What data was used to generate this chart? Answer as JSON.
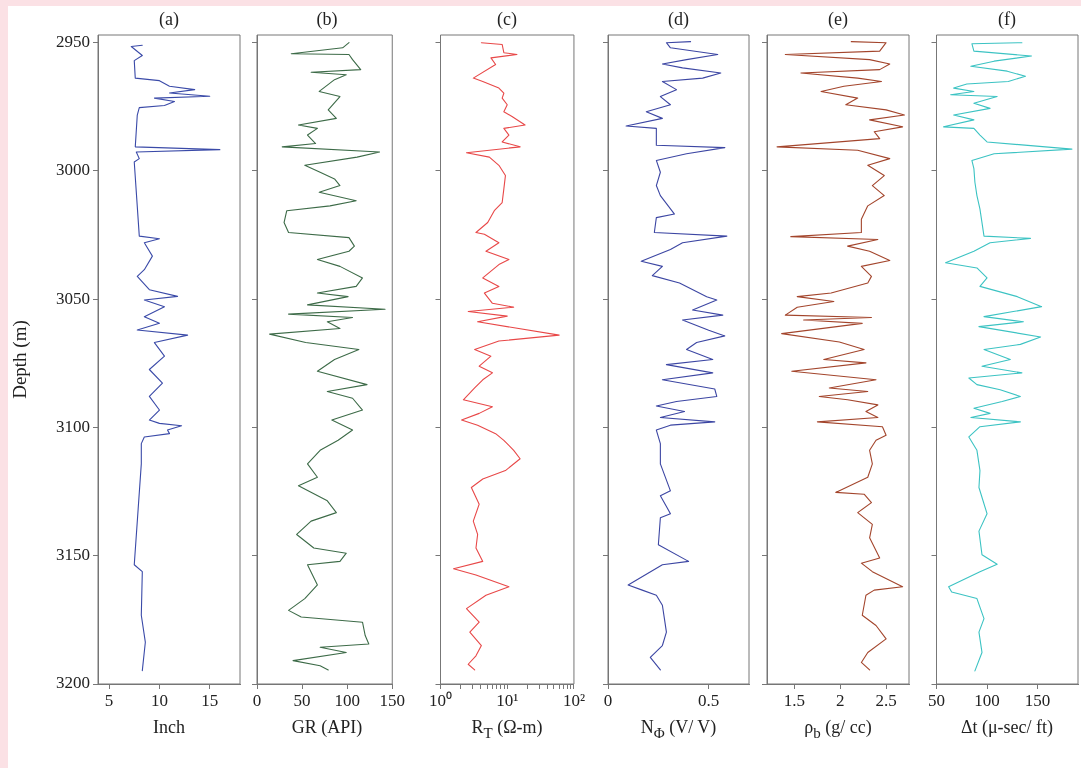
{
  "chart_data": [
    {
      "type": "line",
      "title": "(a)",
      "xlabel": "Inch",
      "ylabel": "Depth (m)",
      "xlim": [
        3.9,
        18
      ],
      "xticks": [
        5,
        10,
        15
      ],
      "ylim": [
        3200,
        2947
      ],
      "yticks": [
        2950,
        3000,
        3050,
        3100,
        3150,
        3200
      ],
      "grid": false,
      "series": [
        {
          "color": "#3a4aa8",
          "x": [
            8.3,
            7.2,
            8.3,
            7.5,
            7.6,
            10.0,
            11,
            13.5,
            11,
            15,
            9.5,
            11.5,
            10.5,
            8.0,
            7.8,
            7.6,
            16,
            7.7,
            8.0,
            7.5,
            8.0,
            10,
            8.5,
            9.3,
            8.5,
            7.8,
            9.0,
            11.8,
            8.5,
            10.5,
            8.5,
            10,
            7.8,
            12.8,
            9.5,
            10.5,
            9.0,
            10.3,
            9.0,
            10.0,
            9.0,
            10,
            12.2,
            10.8,
            11.0,
            8.5,
            8.2,
            8.2,
            7.5,
            8.3,
            8.2,
            8.6,
            8.3
          ],
          "values": [
            2951,
            2951.5,
            2955,
            2957,
            2963.8,
            2964.8,
            2967,
            2968.3,
            2969.6,
            2970.9,
            2971.6,
            2972.9,
            2974.5,
            2975.3,
            2978.2,
            2990.6,
            2991.7,
            2992.6,
            2995.2,
            2996.5,
            3025.4,
            3026.4,
            3028,
            3033.2,
            3038.5,
            3041.1,
            3046.3,
            3048.9,
            3050.3,
            3052.9,
            3056.8,
            3059.4,
            3062,
            3064,
            3066.9,
            3072.2,
            3077.4,
            3082.7,
            3087.9,
            3093.2,
            3097.1,
            3098.4,
            3099.3,
            3101,
            3102.4,
            3103.7,
            3106.3,
            3114.2,
            3153.5,
            3156.2,
            3173.2,
            3183.7,
            3194.8
          ]
        }
      ]
    },
    {
      "type": "line",
      "title": "(b)",
      "xlabel": "GR (API)",
      "xlim": [
        0,
        150
      ],
      "xticks": [
        0,
        50,
        100,
        150
      ],
      "ylim": [
        3200,
        2947
      ],
      "yticks": [
        2950,
        3000,
        3050,
        3100,
        3150,
        3200
      ],
      "grid": false,
      "tick_labels": "x",
      "series": [
        {
          "color": "#3d6b48",
          "x": [
            102,
            95,
            38,
            102,
            106,
            115,
            60,
            99,
            86,
            69,
            92,
            79,
            88,
            46,
            67,
            56,
            65,
            28,
            136,
            111,
            53,
            70,
            86,
            92,
            69,
            110,
            81,
            33,
            30,
            35,
            102,
            108,
            102,
            67,
            92,
            117,
            110,
            67,
            101,
            56,
            142,
            35,
            106,
            78,
            92,
            14,
            54,
            113,
            86,
            67,
            122,
            78,
            106,
            117,
            83,
            106,
            90,
            70,
            56,
            67,
            46,
            78,
            88,
            60,
            44,
            63,
            99,
            92,
            56,
            67,
            53,
            35,
            49,
            117,
            120,
            124,
            70,
            99,
            40,
            70,
            79
          ],
          "values": [
            2950,
            2952,
            2954.3,
            2954.6,
            2956.6,
            2960.5,
            2961.5,
            2962.5,
            2964.4,
            2969,
            2971,
            2976.2,
            2979.5,
            2982.1,
            2983.4,
            2986,
            2989.3,
            2990.6,
            2992.6,
            2994.6,
            2997.8,
            3000.5,
            3003.1,
            3005.7,
            3008.3,
            3011.6,
            3013.6,
            3015.5,
            3020.1,
            3024,
            3026,
            3029.3,
            3031.3,
            3034.5,
            3037.2,
            3041.7,
            3045,
            3047.6,
            3049,
            3052.2,
            3053.9,
            3055.8,
            3057.1,
            3058.8,
            3061.4,
            3063.6,
            3066.9,
            3069.6,
            3073.5,
            3078.1,
            3083.3,
            3086,
            3088.6,
            3093.2,
            3097.1,
            3101,
            3105,
            3108.9,
            3114.2,
            3119.4,
            3122.7,
            3128.6,
            3133.2,
            3136.5,
            3141.7,
            3147,
            3149,
            3152.2,
            3153.5,
            3161.4,
            3166.7,
            3171.3,
            3173.9,
            3175.9,
            3181.1,
            3184.4,
            3185.7,
            3187.7,
            3190.9,
            3192.9,
            3194.5
          ]
        }
      ]
    },
    {
      "type": "line",
      "title": "(c)",
      "xlabel": "R$_{T}$ (Ω-m)",
      "log": "x",
      "xlim": [
        1,
        100
      ],
      "xticks": [
        {
          "value": 1,
          "label": "10⁰"
        },
        {
          "value": 2,
          "label": null
        },
        {
          "value": 3,
          "label": null
        },
        {
          "value": 4,
          "label": null
        },
        {
          "value": 5,
          "label": null
        },
        {
          "value": 6,
          "label": null
        },
        {
          "value": 7,
          "label": null
        },
        {
          "value": 8,
          "label": null
        },
        {
          "value": 9,
          "label": null
        },
        {
          "value": 10,
          "label": "10¹"
        },
        {
          "value": 20,
          "label": null
        },
        {
          "value": 30,
          "label": null
        },
        {
          "value": 40,
          "label": null
        },
        {
          "value": 50,
          "label": null
        },
        {
          "value": 60,
          "label": null
        },
        {
          "value": 70,
          "label": null
        },
        {
          "value": 80,
          "label": null
        },
        {
          "value": 90,
          "label": null
        },
        {
          "value": 100,
          "label": "10²"
        }
      ],
      "ylim": [
        3200,
        2947
      ],
      "yticks": [
        2950,
        3000,
        3050,
        3100,
        3150,
        3200
      ],
      "grid": false,
      "tick_labels": "x",
      "series": [
        {
          "color": "#e84848",
          "x": [
            4.1,
            8.4,
            8.9,
            14,
            5.7,
            6.7,
            3.1,
            4.3,
            7.5,
            8.9,
            8.4,
            10,
            8.9,
            11.8,
            18.5,
            8.9,
            10.6,
            8.4,
            15.6,
            2.45,
            5.4,
            7.5,
            9.4,
            8.9,
            8.4,
            6.4,
            5.1,
            3.4,
            4.55,
            7.5,
            4.8,
            10.6,
            7.5,
            4.3,
            7.5,
            4.55,
            6.0,
            12.5,
            2.6,
            10,
            3.6,
            60,
            7.5,
            3.25,
            5.7,
            3.8,
            6.0,
            4.3,
            3.25,
            2.2,
            6.0,
            3.8,
            2.07,
            3.6,
            6.7,
            8.9,
            12.5,
            15.6,
            9.4,
            4.3,
            2.9,
            3.8,
            3.1,
            3.6,
            3.4,
            4.3,
            1.57,
            3.4,
            10.6,
            4.8,
            2.45,
            3.8,
            2.75,
            4.1,
            3.4,
            2.6,
            3.25
          ],
          "values": [
            2950,
            2950.7,
            2953.9,
            2954.6,
            2955.9,
            2958.5,
            2963.8,
            2965.1,
            2967.7,
            2969.7,
            2971.6,
            2974.2,
            2976.9,
            2978.8,
            2982.1,
            2983.4,
            2986,
            2988.7,
            2990.6,
            2992.9,
            2994.6,
            2997.8,
            3001.8,
            3007,
            3012.3,
            3015.5,
            3020.1,
            3024,
            3024.7,
            3028,
            3031.3,
            3034.5,
            3036.5,
            3041.7,
            3045,
            3047.6,
            3051.6,
            3053.1,
            3054.8,
            3056.6,
            3058.8,
            3064,
            3066.3,
            3069.6,
            3072.2,
            3076.1,
            3078.7,
            3081.4,
            3084.6,
            3089.2,
            3091.9,
            3094.5,
            3097.1,
            3099.1,
            3102.4,
            3105,
            3108.9,
            3112.2,
            3116.8,
            3120.1,
            3123.4,
            3129.9,
            3136.5,
            3141.7,
            3147,
            3152.2,
            3155.1,
            3157.5,
            3162.1,
            3165.4,
            3170.6,
            3175.9,
            3179.8,
            3185,
            3189,
            3192.3,
            3194.5
          ]
        }
      ]
    },
    {
      "type": "line",
      "title": "(d)",
      "xlabel": "N$_{Φ}$ (V/ V)",
      "xlim": [
        0,
        0.7
      ],
      "xticks": [
        0,
        0.5
      ],
      "ylim": [
        3200,
        2947
      ],
      "yticks": [
        2950,
        3000,
        3050,
        3100,
        3150,
        3200
      ],
      "grid": false,
      "tick_labels": "x",
      "series": [
        {
          "color": "#3c46a3",
          "x": [
            0.41,
            0.29,
            0.31,
            0.545,
            0.39,
            0.27,
            0.37,
            0.56,
            0.47,
            0.27,
            0.34,
            0.26,
            0.31,
            0.19,
            0.27,
            0.09,
            0.24,
            0.24,
            0.58,
            0.39,
            0.24,
            0.26,
            0.24,
            0.26,
            0.33,
            0.24,
            0.23,
            0.59,
            0.37,
            0.31,
            0.165,
            0.27,
            0.22,
            0.355,
            0.49,
            0.54,
            0.42,
            0.57,
            0.37,
            0.5,
            0.58,
            0.44,
            0.39,
            0.52,
            0.29,
            0.52,
            0.27,
            0.53,
            0.54,
            0.34,
            0.24,
            0.38,
            0.26,
            0.53,
            0.31,
            0.24,
            0.26,
            0.26,
            0.31,
            0.26,
            0.31,
            0.26,
            0.25,
            0.4,
            0.27,
            0.1,
            0.17,
            0.24,
            0.27,
            0.28,
            0.29,
            0.27,
            0.21,
            0.26
          ],
          "values": [
            2949.6,
            2950,
            2952,
            2954.6,
            2956.6,
            2958.3,
            2959.8,
            2961.8,
            2963.8,
            2965.1,
            2968.3,
            2971,
            2974.2,
            2976.9,
            2979.5,
            2982.5,
            2983.4,
            2990,
            2990.9,
            2993.3,
            2995.9,
            3000.5,
            3005.7,
            3009.6,
            3016.8,
            3018.2,
            3024,
            3025.4,
            3028,
            3030.6,
            3035.2,
            3037.2,
            3040.8,
            3043.7,
            3049,
            3050.3,
            3054.2,
            3056.2,
            3058.1,
            3062.1,
            3064.3,
            3066.9,
            3069.6,
            3073.5,
            3075.5,
            3078.7,
            3081.4,
            3085,
            3087.9,
            3089.9,
            3091.6,
            3093.8,
            3096.1,
            3097.8,
            3099.1,
            3101,
            3106.3,
            3114.2,
            3124.7,
            3126.6,
            3133.6,
            3135.2,
            3145.7,
            3152.2,
            3153.5,
            3161.4,
            3163.4,
            3165.4,
            3169.3,
            3174.5,
            3179.8,
            3185,
            3189.6,
            3194.5
          ]
        }
      ]
    },
    {
      "type": "line",
      "title": "(e)",
      "xlabel": "ρ$_{b}$ (g/ cc)",
      "xlim": [
        1.2,
        2.75
      ],
      "xticks": [
        1.5,
        2,
        2.5
      ],
      "ylim": [
        3200,
        2947
      ],
      "yticks": [
        2950,
        3000,
        3050,
        3100,
        3150,
        3200
      ],
      "grid": false,
      "tick_labels": "x",
      "series": [
        {
          "color": "#a3452c",
          "x": [
            2.12,
            2.5,
            2.43,
            1.4,
            2.32,
            2.54,
            2.43,
            1.57,
            2.19,
            2.45,
            2.04,
            1.79,
            2.19,
            2.06,
            2.5,
            2.7,
            2.32,
            2.68,
            2.37,
            2.43,
            1.31,
            2.19,
            2.54,
            2.3,
            2.48,
            2.35,
            2.48,
            2.3,
            2.23,
            2.23,
            1.46,
            2.41,
            2.08,
            2.32,
            2.54,
            2.23,
            2.34,
            2.3,
            1.9,
            1.53,
            1.93,
            1.53,
            1.4,
            2.34,
            1.6,
            2.24,
            1.36,
            1.99,
            2.26,
            1.82,
            2.28,
            1.47,
            2.39,
            1.88,
            2.3,
            1.77,
            2.08,
            2.41,
            2.28,
            2.41,
            1.75,
            2.46,
            2.5,
            2.39,
            2.32,
            2.35,
            2.3,
            1.95,
            2.26,
            2.34,
            2.19,
            2.35,
            2.32,
            2.43,
            2.23,
            2.35,
            2.68,
            2.37,
            2.28,
            2.24,
            2.39,
            2.5,
            2.3,
            2.23,
            2.32
          ],
          "values": [
            2949.6,
            2950,
            2953.3,
            2954.6,
            2956.6,
            2958.3,
            2960.5,
            2961.8,
            2963.8,
            2965.1,
            2967,
            2969,
            2971.6,
            2974.2,
            2976.2,
            2978.2,
            2980.1,
            2982.8,
            2984.7,
            2987.4,
            2990.6,
            2991.9,
            2995.2,
            2997.8,
            3001.8,
            3005.7,
            3009.6,
            3013.6,
            3018.8,
            3024,
            3025.6,
            3026.7,
            3029.3,
            3031.3,
            3034.9,
            3037.2,
            3041.1,
            3043.7,
            3047.6,
            3049,
            3050.9,
            3053.1,
            3056.2,
            3057.1,
            3058.1,
            3059.4,
            3063.4,
            3066.7,
            3069.6,
            3073.5,
            3074.8,
            3078.1,
            3081.4,
            3084.6,
            3086,
            3087.9,
            3089.2,
            3091.2,
            3093.8,
            3096.1,
            3097.8,
            3099.7,
            3103,
            3105,
            3108.9,
            3114.2,
            3119.4,
            3125.3,
            3126,
            3129.3,
            3133.2,
            3137.8,
            3143,
            3150.9,
            3152.9,
            3156.2,
            3162.1,
            3163.4,
            3165.4,
            3173.2,
            3177.2,
            3182.4,
            3187.7,
            3191.6,
            3194.5
          ]
        }
      ]
    },
    {
      "type": "line",
      "title": "(f)",
      "xlabel": "Δt (μ-sec/ ft)",
      "xlim": [
        50,
        190
      ],
      "xticks": [
        50,
        100,
        150
      ],
      "ylim": [
        3200,
        2947
      ],
      "yticks": [
        2950,
        3000,
        3050,
        3100,
        3150,
        3200
      ],
      "grid": false,
      "tick_labels": "x",
      "series": [
        {
          "color": "#3cc3c3",
          "x": [
            134.5,
            85,
            87,
            144,
            107,
            84,
            120,
            138,
            121,
            80,
            67,
            87,
            64,
            110,
            87,
            103,
            67,
            87,
            57,
            87,
            93,
            100,
            184,
            107,
            85,
            87,
            88,
            90,
            93,
            97,
            143,
            103,
            87,
            59,
            90,
            100,
            93,
            130,
            154,
            126,
            97,
            136,
            92,
            153,
            133,
            97,
            123,
            95,
            134.5,
            82,
            90,
            113,
            133,
            115,
            87,
            103,
            84,
            133,
            93,
            82,
            90,
            93,
            92,
            100,
            92,
            95,
            110,
            93,
            62,
            65,
            90,
            97,
            92,
            95,
            88
          ],
          "values": [
            2950,
            2950.4,
            2953.3,
            2955.2,
            2957.2,
            2959.2,
            2961.1,
            2963.1,
            2965.1,
            2966.1,
            2967.7,
            2969,
            2970.3,
            2971,
            2973.6,
            2975.6,
            2978.2,
            2980.1,
            2982.8,
            2983.4,
            2986,
            2988.7,
            2991.5,
            2993.3,
            2995.9,
            2999.1,
            3004.4,
            3009.6,
            3014.9,
            3025.4,
            3026.3,
            3028,
            3031.3,
            3035.8,
            3037.8,
            3041.7,
            3045,
            3049,
            3052.9,
            3054.8,
            3056.8,
            3058.8,
            3060.7,
            3064.7,
            3067.6,
            3069.6,
            3073.5,
            3076.1,
            3078.7,
            3080.7,
            3083.3,
            3085.3,
            3087.9,
            3089.9,
            3092.5,
            3094.5,
            3096.1,
            3097.8,
            3099.7,
            3103.7,
            3108.9,
            3116.8,
            3123.4,
            3133.6,
            3140.4,
            3149.6,
            3153.3,
            3156.2,
            3162.1,
            3164.1,
            3166.7,
            3174.5,
            3179.8,
            3187.7,
            3194.9
          ]
        }
      ]
    }
  ]
}
